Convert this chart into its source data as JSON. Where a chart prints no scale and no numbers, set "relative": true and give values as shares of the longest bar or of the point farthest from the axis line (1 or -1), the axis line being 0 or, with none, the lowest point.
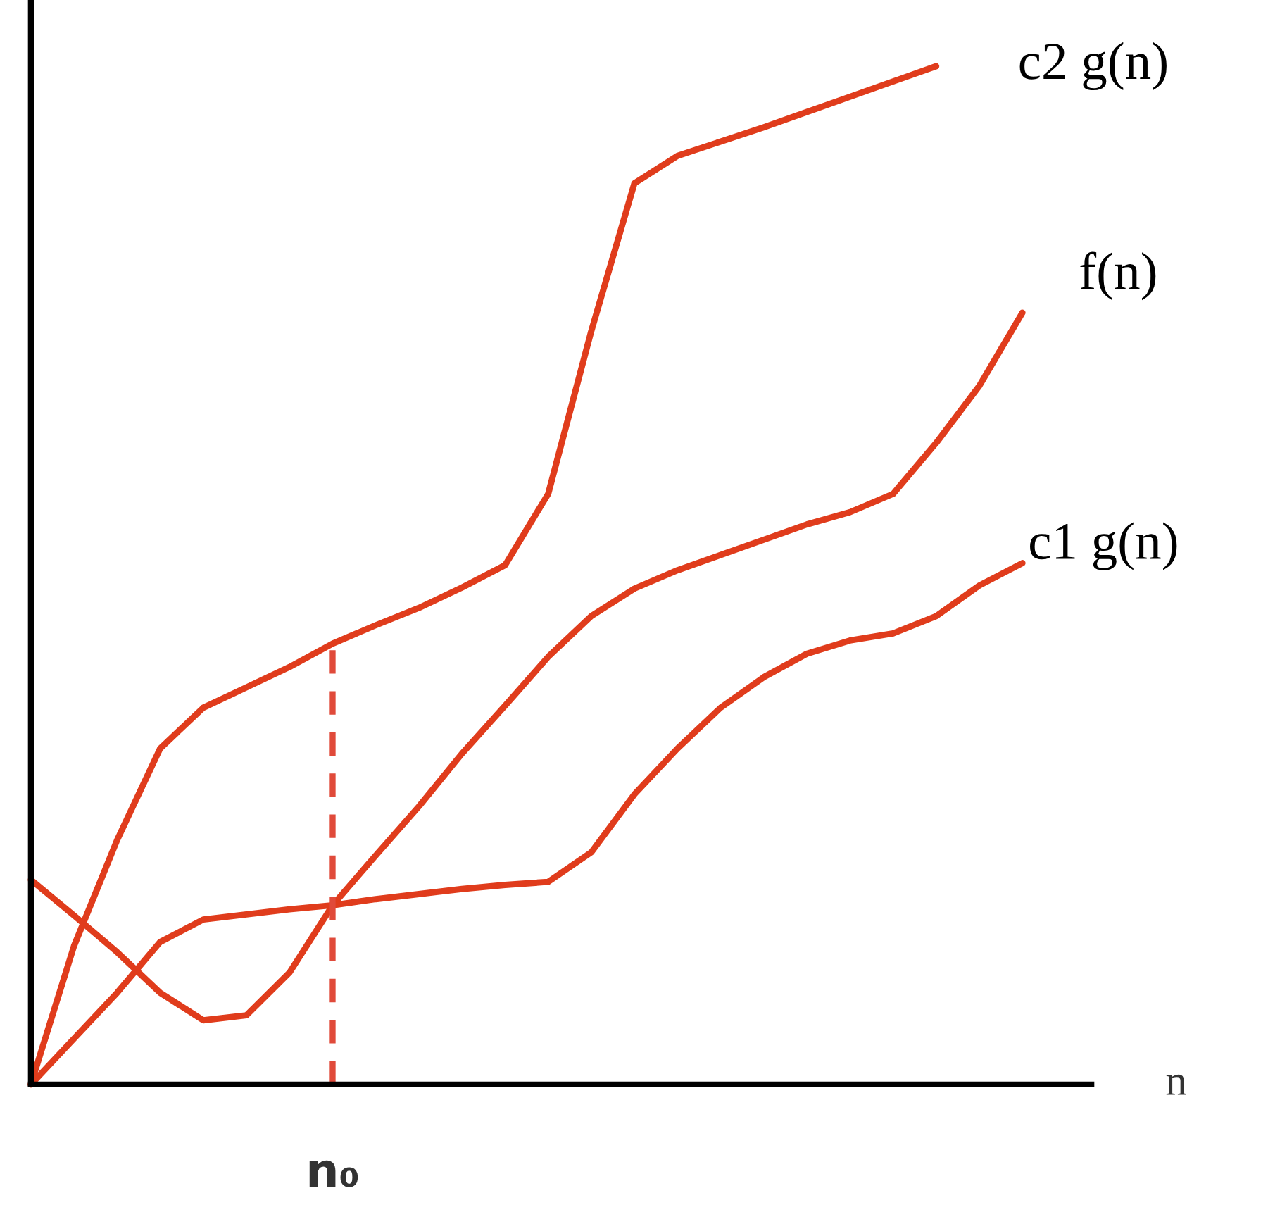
{
  "chart_data": {
    "type": "line",
    "relative": true,
    "xlabel": "n",
    "marker": "none",
    "line_style": "solid",
    "categories": [
      null,
      null,
      null,
      null,
      null,
      null,
      null,
      null,
      null,
      null,
      null,
      null,
      null,
      null,
      null,
      null,
      null,
      null,
      null,
      null,
      null,
      null,
      null,
      null,
      null
    ],
    "series": [
      {
        "name": "c2 g(n)",
        "color": "#e03c1c",
        "values": [
          0,
          0.136,
          0.24,
          0.33,
          0.37,
          0.39,
          0.41,
          0.433,
          0.451,
          0.468,
          0.488,
          0.51,
          0.58,
          0.74,
          0.885,
          0.912,
          0.926,
          0.94,
          0.955,
          0.97,
          0.985,
          1.0,
          null,
          null,
          null
        ]
      },
      {
        "name": "f(n)",
        "color": "#e03c1c",
        "values": [
          0.201,
          0.166,
          0.13,
          0.09,
          0.063,
          0.068,
          0.11,
          0.176,
          0.225,
          0.273,
          0.325,
          0.372,
          0.42,
          0.46,
          0.487,
          0.505,
          0.52,
          0.535,
          0.55,
          0.562,
          0.58,
          0.63,
          0.686,
          0.758,
          null
        ]
      },
      {
        "name": "c1 g(n)",
        "color": "#e03c1c",
        "values": [
          0,
          0.045,
          0.09,
          0.14,
          0.162,
          0.167,
          0.172,
          0.176,
          0.182,
          0.187,
          0.192,
          0.196,
          0.199,
          0.228,
          0.285,
          0.33,
          0.37,
          0.4,
          0.423,
          0.436,
          0.443,
          0.46,
          0.49,
          0.512,
          null
        ]
      }
    ],
    "annotations": [
      "n₀"
    ]
  }
}
